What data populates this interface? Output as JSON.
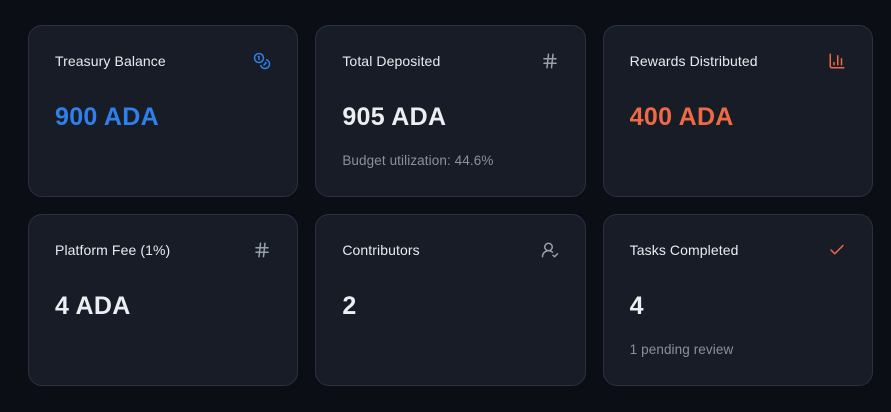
{
  "colors": {
    "page_bg": "#0b0e14",
    "card_bg": "#171c26",
    "card_border": "#2a3140",
    "title_text": "#e8ebef",
    "muted_text": "#8b919c",
    "accent_blue": "#2f80ea",
    "accent_orange": "#ee6a45"
  },
  "cards": [
    {
      "title": "Treasury Balance",
      "icon": "coins-icon",
      "icon_color": "blue",
      "value": "900 ADA",
      "value_color": "blue",
      "subtitle": ""
    },
    {
      "title": "Total Deposited",
      "icon": "hash-icon",
      "icon_color": "muted",
      "value": "905 ADA",
      "value_color": "white",
      "subtitle": "Budget utilization: 44.6%"
    },
    {
      "title": "Rewards Distributed",
      "icon": "bar-chart-icon",
      "icon_color": "orange",
      "value": "400 ADA",
      "value_color": "orange",
      "subtitle": ""
    },
    {
      "title": "Platform Fee (1%)",
      "icon": "hash-icon",
      "icon_color": "muted",
      "value": "4 ADA",
      "value_color": "white",
      "subtitle": ""
    },
    {
      "title": "Contributors",
      "icon": "user-check-icon",
      "icon_color": "muted",
      "value": "2",
      "value_color": "white",
      "subtitle": ""
    },
    {
      "title": "Tasks Completed",
      "icon": "check-icon",
      "icon_color": "orange",
      "value": "4",
      "value_color": "white",
      "subtitle": "1 pending review"
    }
  ]
}
